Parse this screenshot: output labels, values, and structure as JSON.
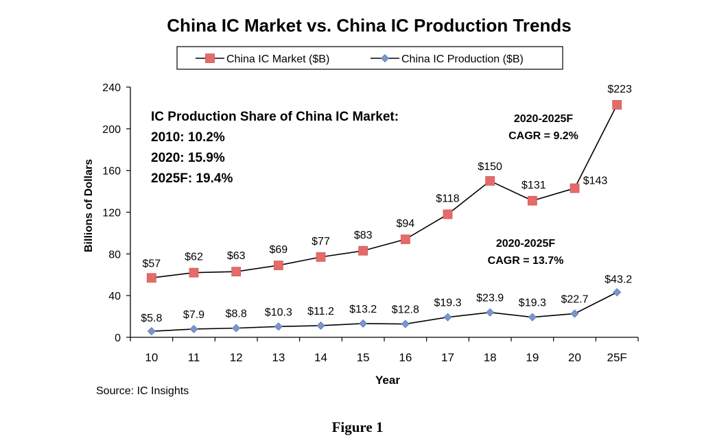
{
  "chart_data": {
    "type": "line",
    "title": "China IC Market vs. China IC Production Trends",
    "xlabel": "Year",
    "ylabel": "Billions of Dollars",
    "categories": [
      "10",
      "11",
      "12",
      "13",
      "14",
      "15",
      "16",
      "17",
      "18",
      "19",
      "20",
      "25F"
    ],
    "ylim": [
      0,
      240
    ],
    "yticks": [
      "0",
      "40",
      "80",
      "120",
      "160",
      "200",
      "240"
    ],
    "grid": false,
    "legend_position": "top",
    "series": [
      {
        "name": "China IC Market ($B)",
        "color": "#e56a6a",
        "marker": "square",
        "values": [
          57,
          62,
          63,
          69,
          77,
          83,
          94,
          118,
          150,
          131,
          143,
          223
        ],
        "labels": [
          "$57",
          "$62",
          "$63",
          "$69",
          "$77",
          "$83",
          "$94",
          "$118",
          "$150",
          "$131",
          "$143",
          "$223"
        ]
      },
      {
        "name": "China IC Production ($B)",
        "color": "#7b96cc",
        "marker": "diamond",
        "values": [
          5.8,
          7.9,
          8.8,
          10.3,
          11.2,
          13.2,
          12.8,
          19.3,
          23.9,
          19.3,
          22.7,
          43.2
        ],
        "labels": [
          "$5.8",
          "$7.9",
          "$8.8",
          "$10.3",
          "$11.2",
          "$13.2",
          "$12.8",
          "$19.3",
          "$23.9",
          "$19.3",
          "$22.7",
          "$43.2"
        ]
      }
    ],
    "annotations": {
      "share_title": "IC Production Share of China IC Market:",
      "share_lines": [
        "2010: 10.2%",
        "2020: 15.9%",
        "2025F: 19.4%"
      ],
      "market_cagr": [
        "2020-2025F",
        "CAGR = 9.2%"
      ],
      "production_cagr": [
        "2020-2025F",
        "CAGR = 13.7%"
      ]
    },
    "source": "Source: IC Insights",
    "caption": "Figure 1"
  }
}
